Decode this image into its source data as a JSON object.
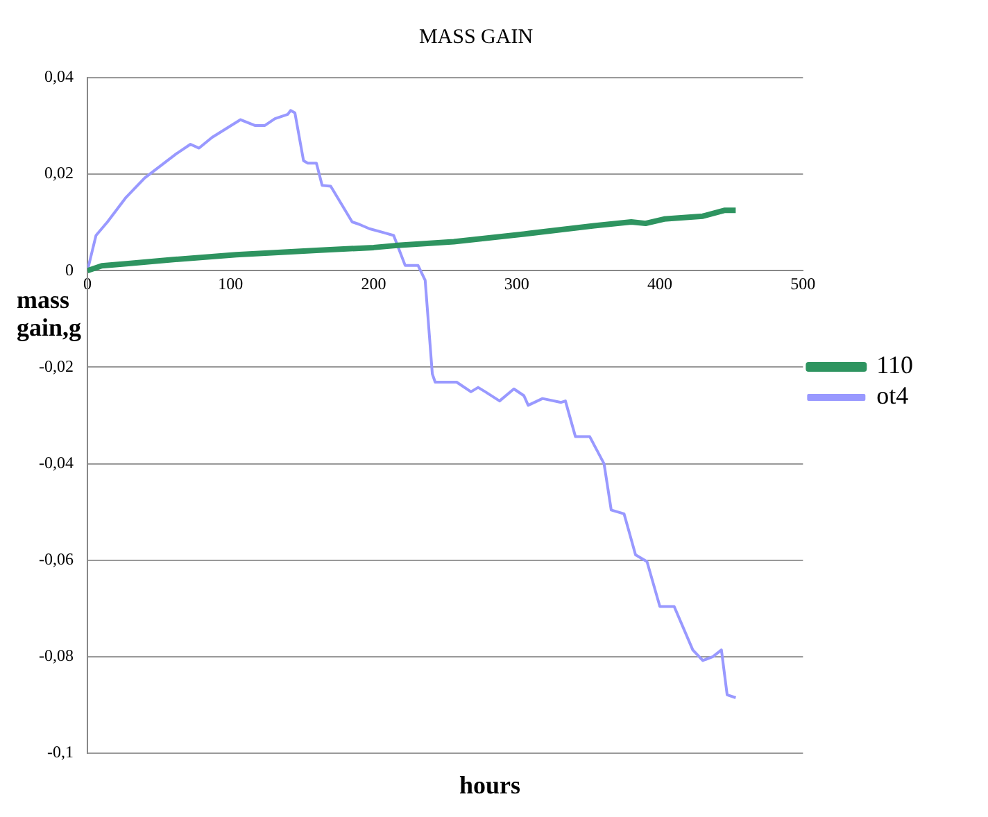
{
  "chart_data": {
    "type": "line",
    "title": "MASS GAIN",
    "xlabel": "hours",
    "ylabel": "mass gain,g",
    "xlim": [
      0,
      500
    ],
    "xticks": [
      0,
      100,
      200,
      300,
      400,
      500
    ],
    "ylim": [
      -0.1,
      0.04
    ],
    "yticks": [
      {
        "value": -0.1,
        "label": "-0,1"
      },
      {
        "value": -0.08,
        "label": "-0,08"
      },
      {
        "value": -0.06,
        "label": "-0,06"
      },
      {
        "value": -0.04,
        "label": "-0,04"
      },
      {
        "value": -0.02,
        "label": "-0,02"
      },
      0,
      {
        "value": 0.02,
        "label": "0,02"
      },
      {
        "value": 0.04,
        "label": "0,04"
      }
    ],
    "grid": "y",
    "legend": "right",
    "marker": "none",
    "series": [
      {
        "name": "110",
        "color": "#2e9460",
        "x": [
          0,
          10,
          30,
          60,
          104,
          140,
          160,
          200,
          215,
          256,
          305,
          354,
          380,
          390,
          403,
          430,
          445,
          453
        ],
        "values": [
          0,
          0.001,
          0.0015,
          0.0023,
          0.0033,
          0.0039,
          0.0042,
          0.0048,
          0.0052,
          0.006,
          0.0076,
          0.0093,
          0.0101,
          0.0098,
          0.0107,
          0.0113,
          0.0125,
          0.0125
        ]
      },
      {
        "name": "ot4",
        "color": "#9999ff",
        "x": [
          0,
          6,
          14,
          27,
          40,
          62,
          72,
          78,
          87,
          107,
          117,
          124,
          131,
          140,
          142,
          145,
          151,
          154,
          160,
          164,
          170,
          185,
          190,
          197,
          207,
          214,
          222,
          231,
          236,
          241,
          243,
          253,
          258,
          268,
          273,
          278,
          288,
          298,
          305,
          308,
          318,
          331,
          334,
          341,
          351,
          361,
          366,
          375,
          383,
          391,
          400,
          410,
          423,
          430,
          437,
          443,
          447,
          453
        ],
        "values": [
          0,
          0.0073,
          0.0101,
          0.0152,
          0.0192,
          0.0242,
          0.0262,
          0.0254,
          0.0276,
          0.0313,
          0.0301,
          0.0301,
          0.0315,
          0.0324,
          0.0332,
          0.0327,
          0.0228,
          0.0223,
          0.0223,
          0.0177,
          0.0175,
          0.0101,
          0.0096,
          0.0087,
          0.0079,
          0.0073,
          0.0011,
          0.0011,
          -0.002,
          -0.0214,
          -0.0231,
          -0.0231,
          -0.0231,
          -0.0251,
          -0.0242,
          -0.0251,
          -0.027,
          -0.0245,
          -0.0259,
          -0.0279,
          -0.0265,
          -0.0273,
          -0.027,
          -0.0344,
          -0.0344,
          -0.04,
          -0.0496,
          -0.0504,
          -0.0589,
          -0.0603,
          -0.0696,
          -0.0696,
          -0.0786,
          -0.0808,
          -0.08,
          -0.0786,
          -0.0879,
          -0.0885
        ]
      }
    ]
  }
}
